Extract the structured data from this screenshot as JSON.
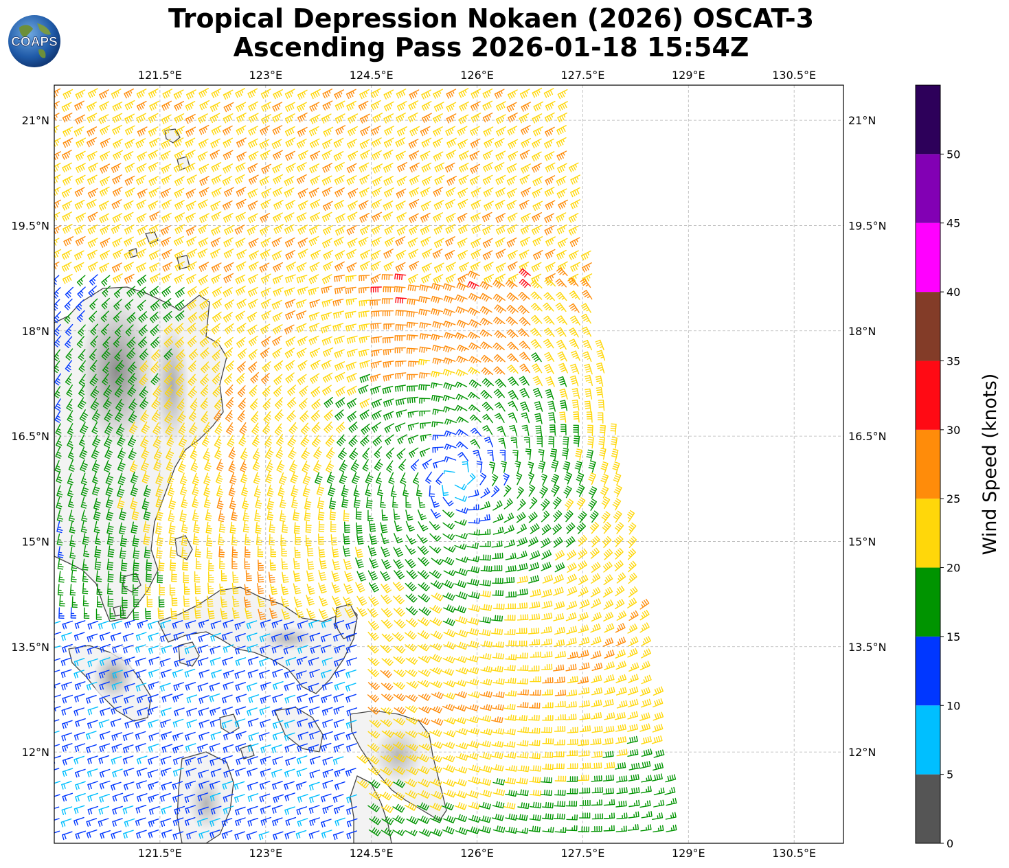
{
  "header": {
    "logo_text": "COAPS",
    "title_line1": "Tropical Depression Nokaen (2026) OSCAT-3",
    "title_line2": "Ascending Pass 2026-01-18 15:54Z"
  },
  "map": {
    "lon_ticks": [
      "121.5°E",
      "123°E",
      "124.5°E",
      "126°E",
      "127.5°E",
      "129°E",
      "130.5°E"
    ],
    "lon_values": [
      121.5,
      123,
      124.5,
      126,
      127.5,
      129,
      130.5
    ],
    "lat_ticks": [
      "21°N",
      "19.5°N",
      "18°N",
      "16.5°N",
      "15°N",
      "13.5°N",
      "12°N"
    ],
    "lat_values": [
      21,
      19.5,
      18,
      16.5,
      15,
      13.5,
      12
    ],
    "lon_range": [
      120,
      131.2
    ],
    "lat_range": [
      10.7,
      21.5
    ],
    "gridlines": true,
    "storm_center": {
      "lon": 125.7,
      "lat": 15.9
    },
    "swath_east_edge": {
      "north_lon": 127.3,
      "south_lon": 128.8
    }
  },
  "colorbar": {
    "label": "Wind Speed (knots)",
    "ticks": [
      "0",
      "5",
      "10",
      "15",
      "20",
      "25",
      "30",
      "35",
      "40",
      "45",
      "50"
    ],
    "bins": [
      {
        "from": 0,
        "to": 5,
        "color": "#555555"
      },
      {
        "from": 5,
        "to": 10,
        "color": "#00bfff"
      },
      {
        "from": 10,
        "to": 15,
        "color": "#0037ff"
      },
      {
        "from": 15,
        "to": 20,
        "color": "#009400"
      },
      {
        "from": 20,
        "to": 25,
        "color": "#ffd70a"
      },
      {
        "from": 25,
        "to": 30,
        "color": "#ff8c0a"
      },
      {
        "from": 30,
        "to": 35,
        "color": "#ff0a14"
      },
      {
        "from": 35,
        "to": 40,
        "color": "#833c28"
      },
      {
        "from": 40,
        "to": 45,
        "color": "#ff00ff"
      },
      {
        "from": 45,
        "to": 50,
        "color": "#8200b4"
      },
      {
        "from": 50,
        "to": 55,
        "color": "#2d005a"
      }
    ],
    "range": [
      0,
      55
    ]
  }
}
